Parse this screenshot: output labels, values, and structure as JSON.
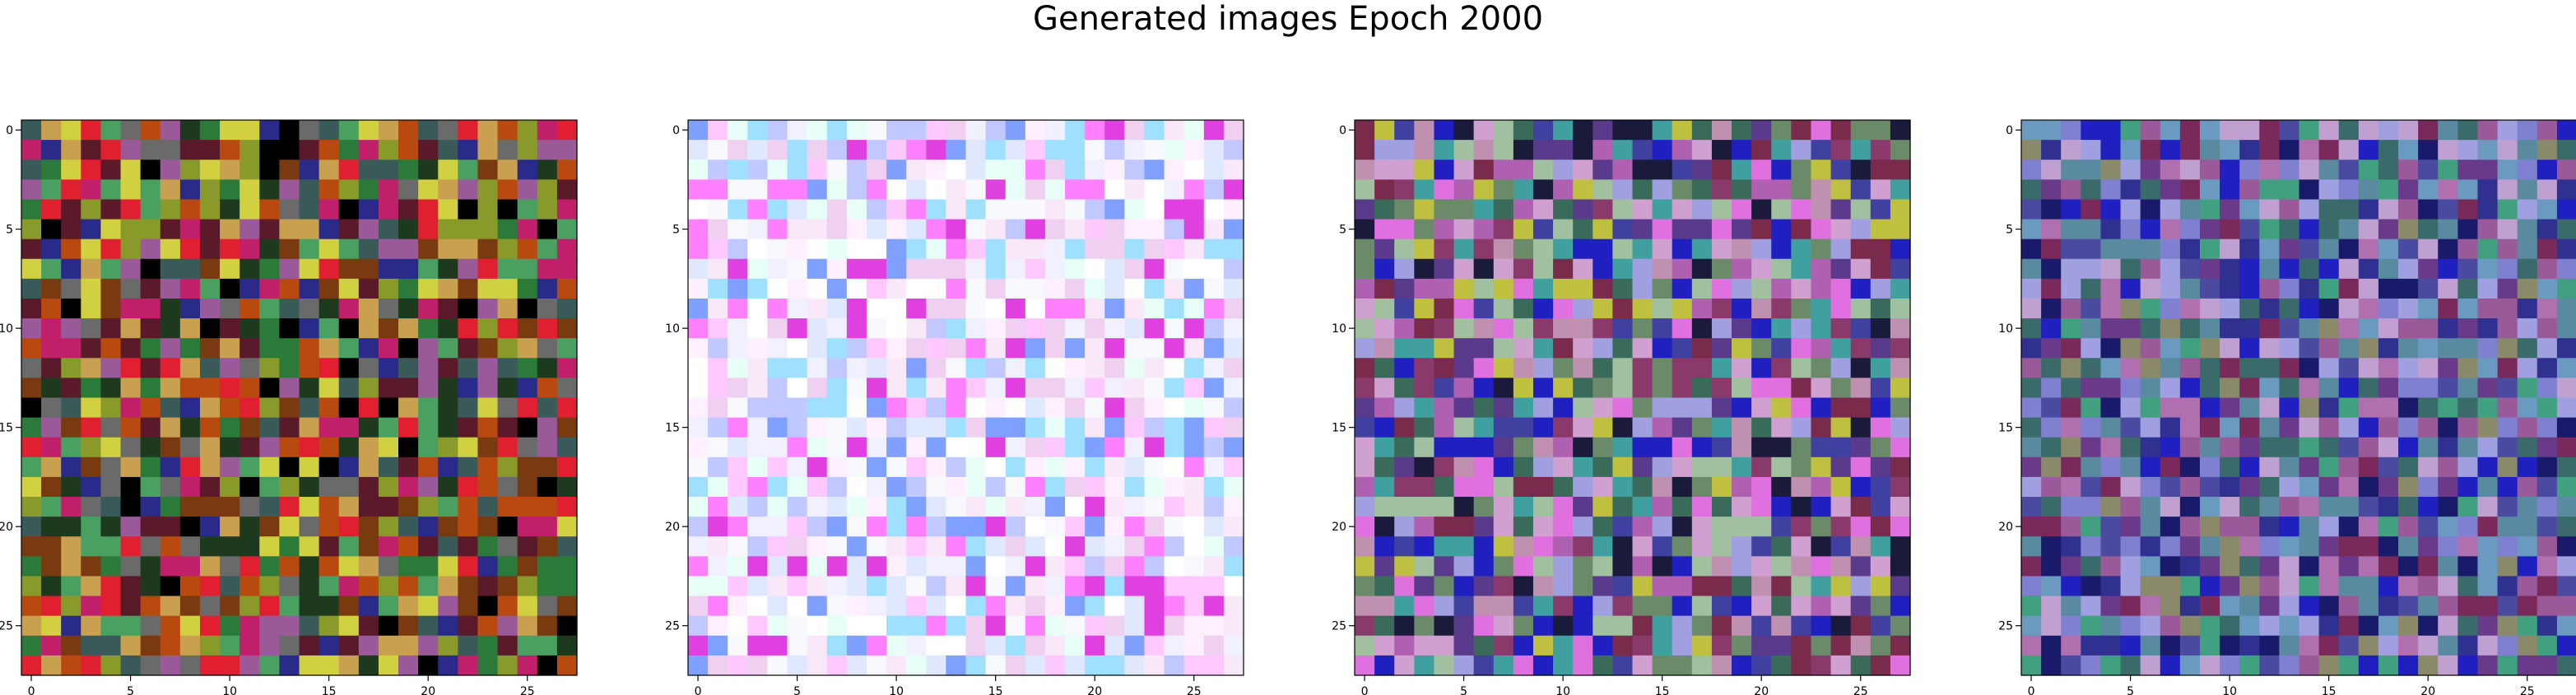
{
  "title": "Generated images Epoch 2000",
  "chart_data": [
    {
      "type": "heatmap",
      "grid_size": [
        28,
        28
      ],
      "palette": [
        "#2b7a3a",
        "#8a9a2a",
        "#5a1a2a",
        "#1e3a1e",
        "#c0206a",
        "#6a6a6a",
        "#b84a10",
        "#2a2a8a",
        "#d0d040",
        "#3a5a5a",
        "#e02030",
        "#000000",
        "#9a5a9a",
        "#4aa060",
        "#7a3a10",
        "#c8a050"
      ],
      "xticks": [
        0,
        5,
        10,
        15,
        20,
        25
      ],
      "yticks": [
        0,
        5,
        10,
        15,
        20,
        25
      ],
      "xlim": [
        -0.5,
        27.5
      ],
      "ylim": [
        27.5,
        -0.5
      ]
    },
    {
      "type": "heatmap",
      "grid_size": [
        28,
        28
      ],
      "palette": [
        "#ffffff",
        "#f8e8f8",
        "#f0d0f0",
        "#ffc8ff",
        "#ff80ff",
        "#e040e0",
        "#f0f0ff",
        "#e0e8ff",
        "#c0c8ff",
        "#80a0ff",
        "#e8fff8",
        "#a0e0ff",
        "#fff0ff",
        "#f8f8ff"
      ],
      "xticks": [
        0,
        5,
        10,
        15,
        20,
        25
      ],
      "yticks": [
        0,
        5,
        10,
        15,
        20,
        25
      ],
      "xlim": [
        -0.5,
        27.5
      ],
      "ylim": [
        27.5,
        -0.5
      ]
    },
    {
      "type": "heatmap",
      "grid_size": [
        28,
        28
      ],
      "palette": [
        "#5a3a8a",
        "#b060b0",
        "#d0a0d0",
        "#8a3a6a",
        "#3a6a5a",
        "#2020c0",
        "#a0a0e0",
        "#6a8a6a",
        "#c0c040",
        "#1a1a3a",
        "#40a0a0",
        "#e070e0",
        "#7a2a4a",
        "#a0c0a0",
        "#4040a0",
        "#c090b0"
      ],
      "xticks": [
        0,
        5,
        10,
        15,
        20,
        25
      ],
      "yticks": [
        0,
        5,
        10,
        15,
        20,
        25
      ],
      "xlim": [
        -0.5,
        27.5
      ],
      "ylim": [
        27.5,
        -0.5
      ]
    },
    {
      "type": "heatmap",
      "grid_size": [
        28,
        28
      ],
      "palette": [
        "#4a4aa0",
        "#2020c0",
        "#8080d0",
        "#b070b0",
        "#6a3a8a",
        "#3a6a6a",
        "#a0a0e0",
        "#5a8aa0",
        "#9a5a9a",
        "#1a1a6a",
        "#c0a0d0",
        "#40a080",
        "#7a2a5a",
        "#6a9ac0",
        "#303090",
        "#8a8a6a"
      ],
      "xticks": [
        0,
        5,
        10,
        15,
        20,
        25
      ],
      "yticks": [
        0,
        5,
        10,
        15,
        20,
        25
      ],
      "xlim": [
        -0.5,
        27.5
      ],
      "ylim": [
        27.5,
        -0.5
      ]
    }
  ]
}
